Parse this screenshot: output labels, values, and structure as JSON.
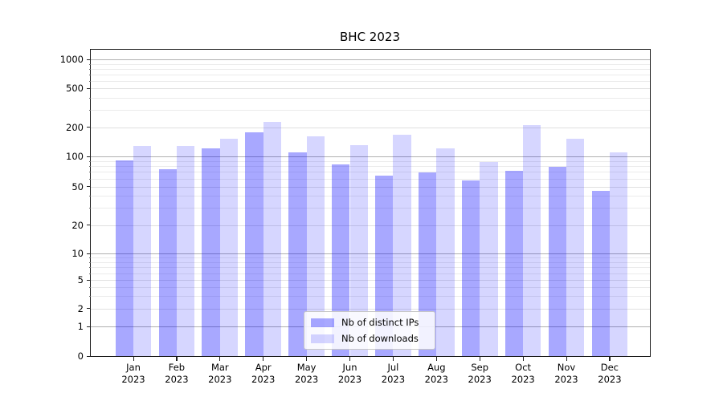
{
  "chart_data": {
    "type": "bar",
    "title": "BHC 2023",
    "x": [
      "Jan",
      "Feb",
      "Mar",
      "Apr",
      "May",
      "Jun",
      "Jul",
      "Aug",
      "Sep",
      "Oct",
      "Nov",
      "Dec"
    ],
    "x_year_suffix": "2023",
    "series": [
      {
        "name": "Nb of distinct IPs",
        "color_hex": "#a8a8fb",
        "color_rgba": "rgba(0,0,255,0.34)",
        "values": [
          92,
          74,
          122,
          178,
          111,
          83,
          64,
          69,
          58,
          72,
          78,
          45
        ]
      },
      {
        "name": "Nb of downloads",
        "color_hex": "#dadafd",
        "color_rgba": "rgba(0,0,255,0.16)",
        "values": [
          127,
          129,
          153,
          226,
          161,
          131,
          166,
          122,
          88,
          212,
          152,
          110
        ]
      }
    ],
    "yticks": [
      0,
      1,
      2,
      5,
      10,
      20,
      50,
      100,
      200,
      500,
      1000
    ],
    "yscale": "symlog",
    "ylim": [
      0,
      1280
    ],
    "grid": true,
    "legend_position": "lower center",
    "axis_color": "#000000",
    "gridline_major_color": "#b0b0b0",
    "gridline_minor_color": "#ebebeb"
  }
}
